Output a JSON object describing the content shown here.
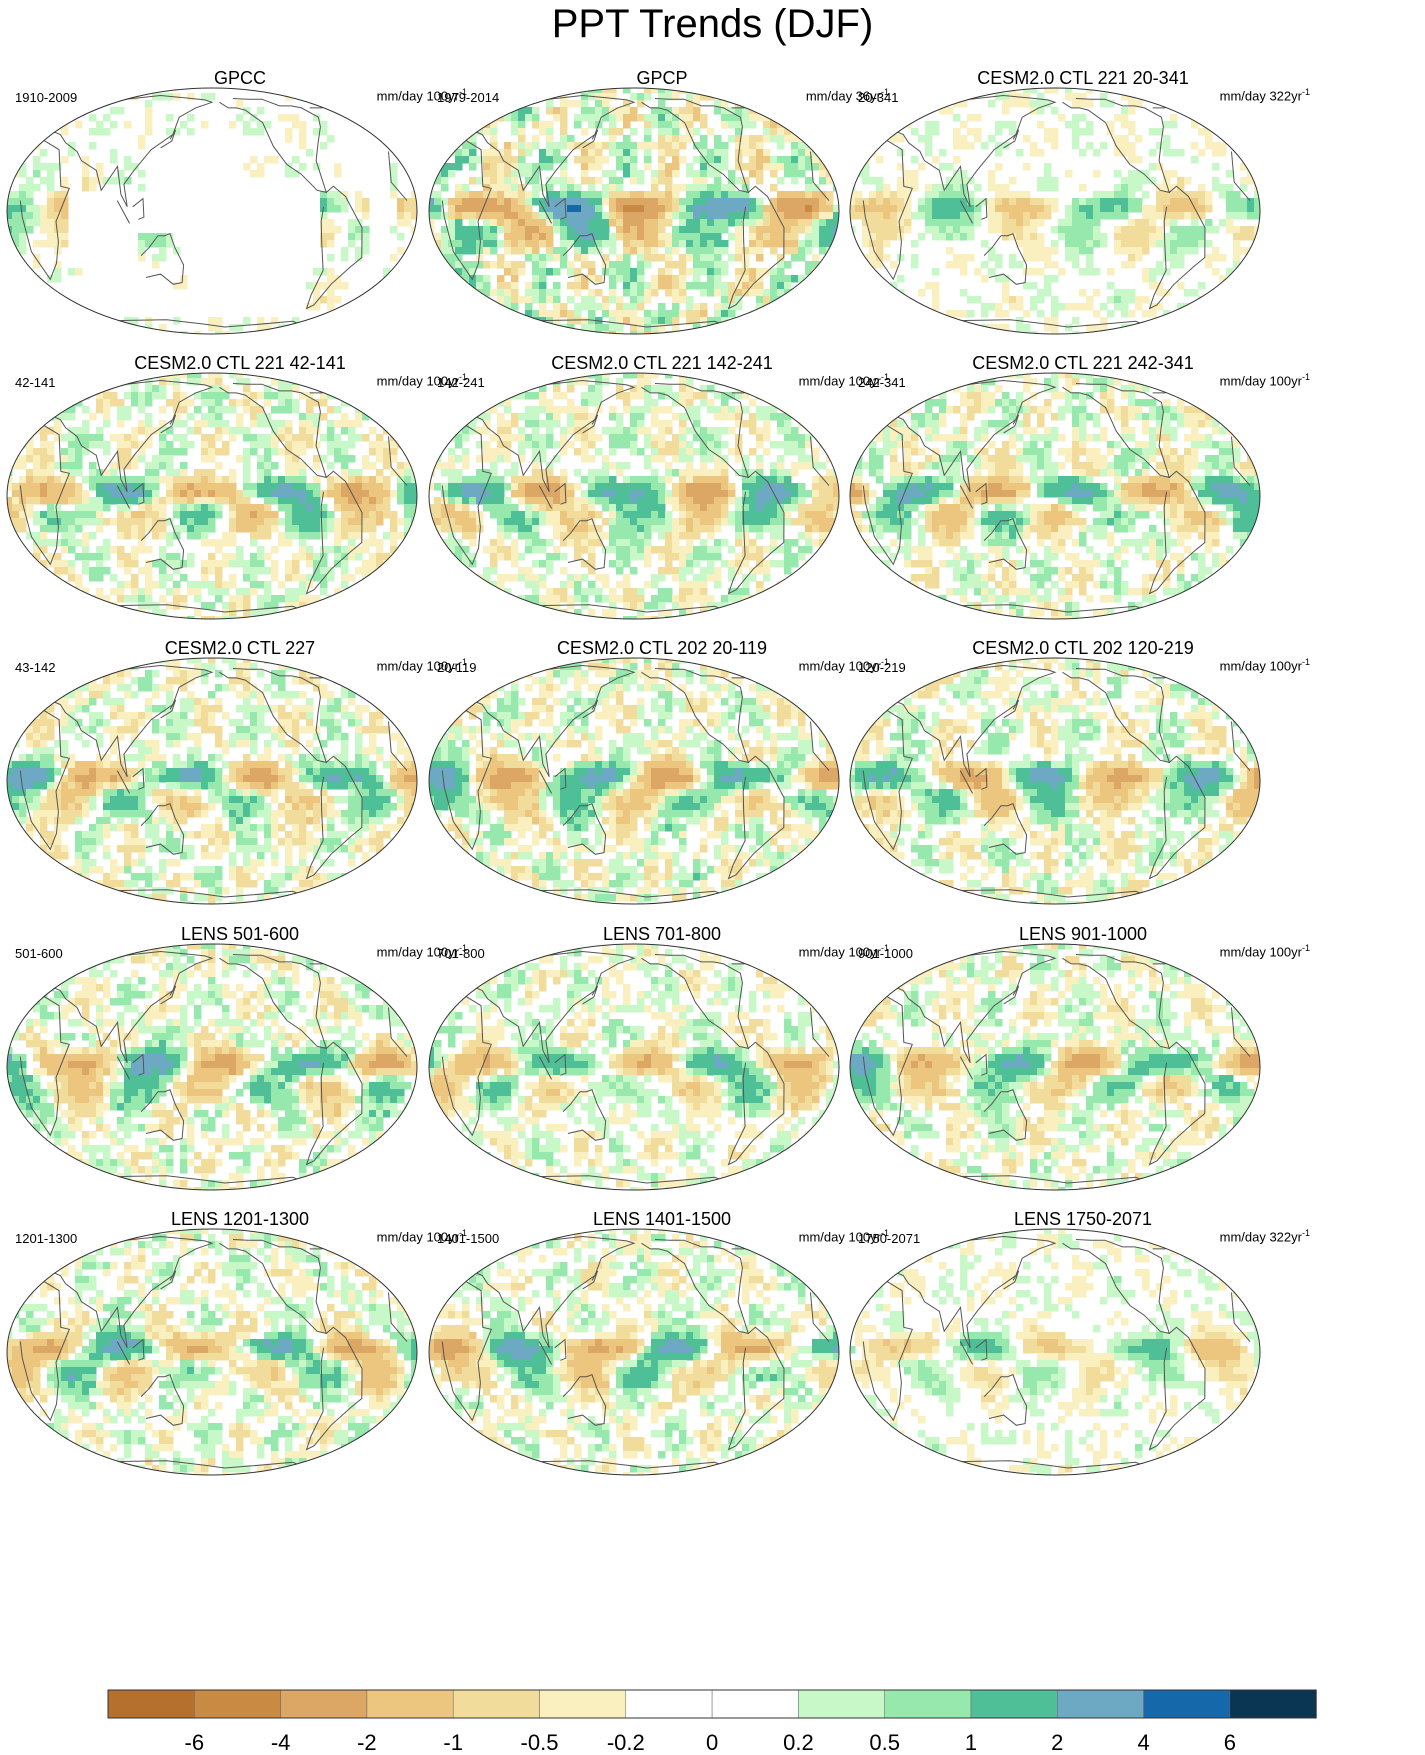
{
  "title": "PPT Trends (DJF)",
  "panels": [
    {
      "title": "GPCC",
      "period": "1910-2009",
      "units": "mm/day 100yr",
      "units_exp": "-1",
      "seed": 11,
      "amp": 0.55,
      "land_only": true
    },
    {
      "title": "GPCP",
      "period": "1979-2014",
      "units": "mm/day 36yr",
      "units_exp": "-1",
      "seed": 23,
      "amp": 1.4,
      "land_only": false
    },
    {
      "title": "CESM2.0 CTL 221 20-341",
      "period": "20-341",
      "units": "mm/day 322yr",
      "units_exp": "-1",
      "seed": 37,
      "amp": 0.55,
      "land_only": false
    },
    {
      "title": "CESM2.0 CTL 221 42-141",
      "period": "42-141",
      "units": "mm/day 100yr",
      "units_exp": "-1",
      "seed": 41,
      "amp": 1.0,
      "land_only": false
    },
    {
      "title": "CESM2.0 CTL 221 142-241",
      "period": "142-241",
      "units": "mm/day 100yr",
      "units_exp": "-1",
      "seed": 53,
      "amp": 1.0,
      "land_only": false
    },
    {
      "title": "CESM2.0 CTL 221 242-341",
      "period": "242-341",
      "units": "mm/day 100yr",
      "units_exp": "-1",
      "seed": 67,
      "amp": 1.0,
      "land_only": false
    },
    {
      "title": "CESM2.0 CTL 227",
      "period": "43-142",
      "units": "mm/day 100yr",
      "units_exp": "-1",
      "seed": 71,
      "amp": 1.0,
      "land_only": false
    },
    {
      "title": "CESM2.0 CTL 202 20-119",
      "period": "20-119",
      "units": "mm/day 100yr",
      "units_exp": "-1",
      "seed": 83,
      "amp": 1.05,
      "land_only": false
    },
    {
      "title": "CESM2.0 CTL 202 120-219",
      "period": "120-219",
      "units": "mm/day 100yr",
      "units_exp": "-1",
      "seed": 97,
      "amp": 0.95,
      "land_only": false
    },
    {
      "title": "LENS 501-600",
      "period": "501-600",
      "units": "mm/day 100yr",
      "units_exp": "-1",
      "seed": 101,
      "amp": 1.0,
      "land_only": false
    },
    {
      "title": "LENS 701-800",
      "period": "701-800",
      "units": "mm/day 100yr",
      "units_exp": "-1",
      "seed": 113,
      "amp": 0.85,
      "land_only": false
    },
    {
      "title": "LENS 901-1000",
      "period": "901-1000",
      "units": "mm/day 100yr",
      "units_exp": "-1",
      "seed": 127,
      "amp": 0.9,
      "land_only": false
    },
    {
      "title": "LENS 1201-1300",
      "period": "1201-1300",
      "units": "mm/day 100yr",
      "units_exp": "-1",
      "seed": 131,
      "amp": 0.95,
      "land_only": false
    },
    {
      "title": "LENS 1401-1500",
      "period": "1401-1500",
      "units": "mm/day 100yr",
      "units_exp": "-1",
      "seed": 149,
      "amp": 0.9,
      "land_only": false
    },
    {
      "title": "LENS 1750-2071",
      "period": "1750-2071",
      "units": "mm/day 322yr",
      "units_exp": "-1",
      "seed": 157,
      "amp": 0.55,
      "land_only": false
    }
  ],
  "colorbar": {
    "labels": [
      "-6",
      "-4",
      "-2",
      "-1",
      "-0.5",
      "-0.2",
      "0",
      "0.2",
      "0.5",
      "1",
      "2",
      "4",
      "6"
    ],
    "colors": [
      "#b5702d",
      "#c98a43",
      "#dca765",
      "#ecc57e",
      "#f2dc9c",
      "#faefbf",
      "#ffffff",
      "#ffffff",
      "#c8f7c8",
      "#97e8ac",
      "#4fbf98",
      "#6ea9c4",
      "#1568a9",
      "#0a3653"
    ]
  },
  "chart_data": {
    "type": "heatmap",
    "title": "PPT Trends (DJF)",
    "projection": "Robinson-like global, centered on Pacific",
    "contour_levels": [
      -6,
      -4,
      -2,
      -1,
      -0.5,
      -0.2,
      0,
      0.2,
      0.5,
      1,
      2,
      4,
      6
    ],
    "panel_count": 15,
    "layout": "5 rows x 3 columns"
  }
}
